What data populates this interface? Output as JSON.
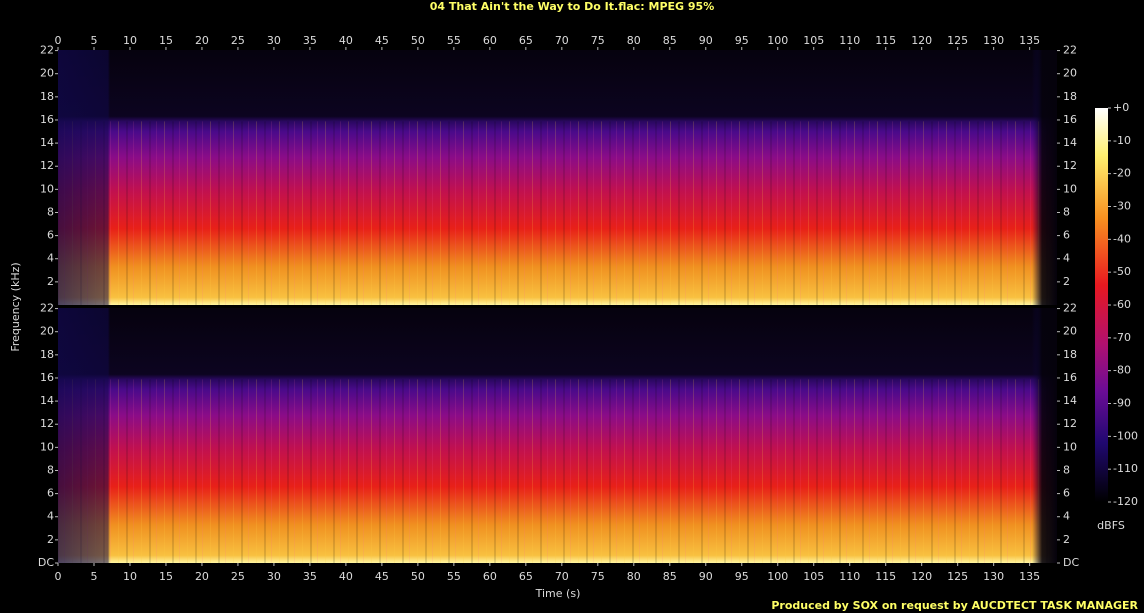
{
  "chart_data": {
    "type": "spectrogram",
    "title": "04 That Ain't the Way to Do It.flac: MPEG 95%",
    "xlabel": "Time (s)",
    "ylabel": "Frequency (kHz)",
    "xlim": [
      0,
      138.8
    ],
    "xticks": [
      0,
      5,
      10,
      15,
      20,
      25,
      30,
      35,
      40,
      45,
      50,
      55,
      60,
      65,
      70,
      75,
      80,
      85,
      90,
      95,
      100,
      105,
      110,
      115,
      120,
      125,
      130,
      135
    ],
    "channels": [
      {
        "ylim": [
          0,
          22.05
        ],
        "yticks": [
          2,
          4,
          6,
          8,
          10,
          12,
          14,
          16,
          18,
          20,
          22
        ]
      },
      {
        "ylim": [
          0,
          22.05
        ],
        "yticks": [
          {
            "value": 0,
            "label": "DC"
          },
          2,
          4,
          6,
          8,
          10,
          12,
          14,
          16,
          18,
          20,
          22
        ]
      }
    ],
    "colorbar": {
      "label": "dBFS",
      "lim": [
        -120,
        0
      ],
      "ticks": [
        {
          "value": 0,
          "label": "+0"
        },
        -10,
        -20,
        -30,
        -40,
        -50,
        -60,
        -70,
        -80,
        -90,
        -100,
        -110,
        -120
      ]
    }
  },
  "footer": "Produced by SOX on request by AUCDTECT TASK MANAGER"
}
